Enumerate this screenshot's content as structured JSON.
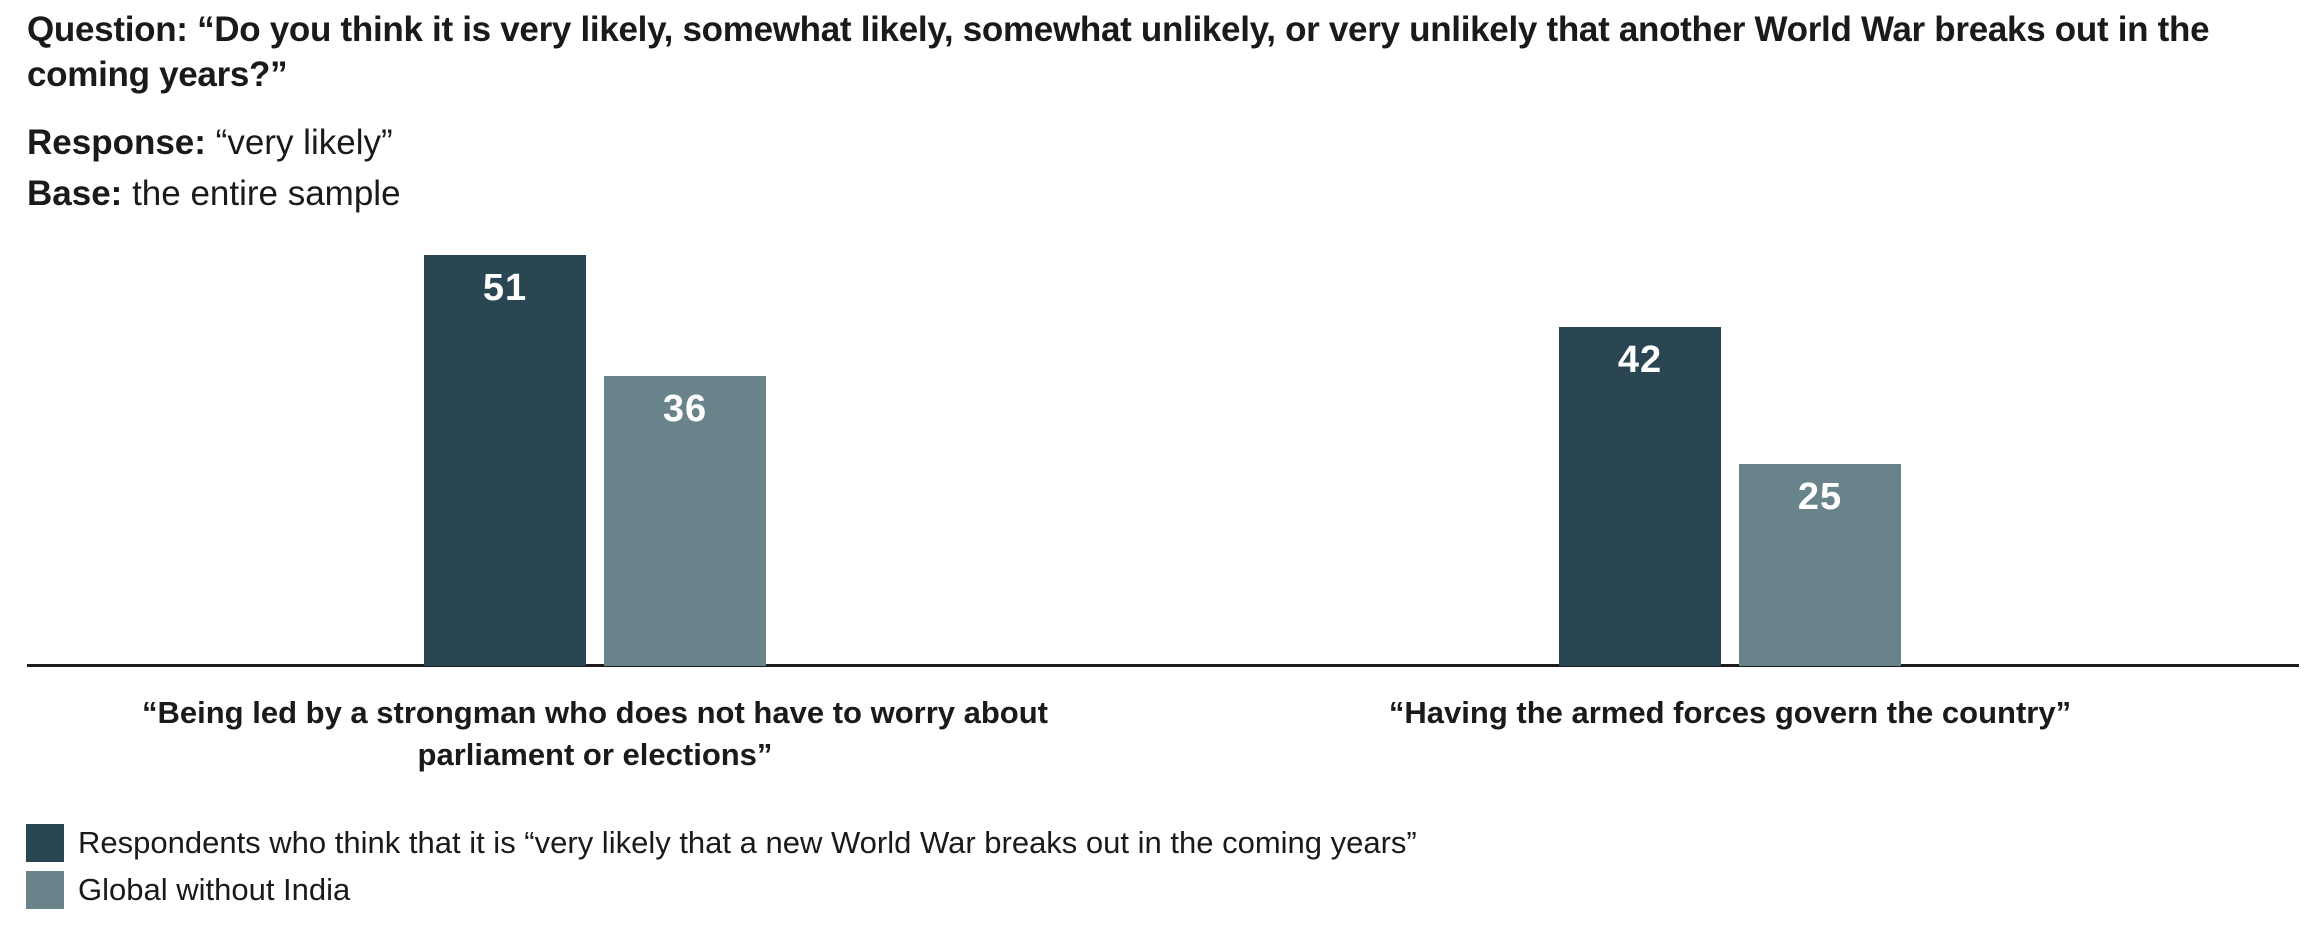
{
  "header": {
    "question_label": "Question:",
    "question_text": "“Do you think it is very likely, somewhat likely, somewhat unlikely, or very unlikely that another World War breaks out in the coming years?”",
    "response_label": "Response:",
    "response_text": "“very likely”",
    "base_label": "Base:",
    "base_text": "the entire sample"
  },
  "colors": {
    "primary": "#2b4653",
    "secondary": "#69838a",
    "text": "#1a1a1a",
    "axis": "#1c1c1c",
    "value_label": "#ffffff"
  },
  "chart_data": {
    "type": "bar",
    "title": "",
    "xlabel": "",
    "ylabel": "",
    "categories": [
      "“Being led by a strongman who does not have to worry about parliament or elections”",
      "“Having the armed forces govern the country”"
    ],
    "series": [
      {
        "name": "Respondents who think that it is “very likely that a new World War breaks out in the coming years”",
        "values": [
          51,
          42
        ],
        "color": "#2b4653"
      },
      {
        "name": "Global without India",
        "values": [
          36,
          25
        ],
        "color": "#69838a"
      }
    ],
    "ylim": [
      0,
      60
    ],
    "grid": false,
    "value_labels": true,
    "legend_position": "bottom-left"
  }
}
